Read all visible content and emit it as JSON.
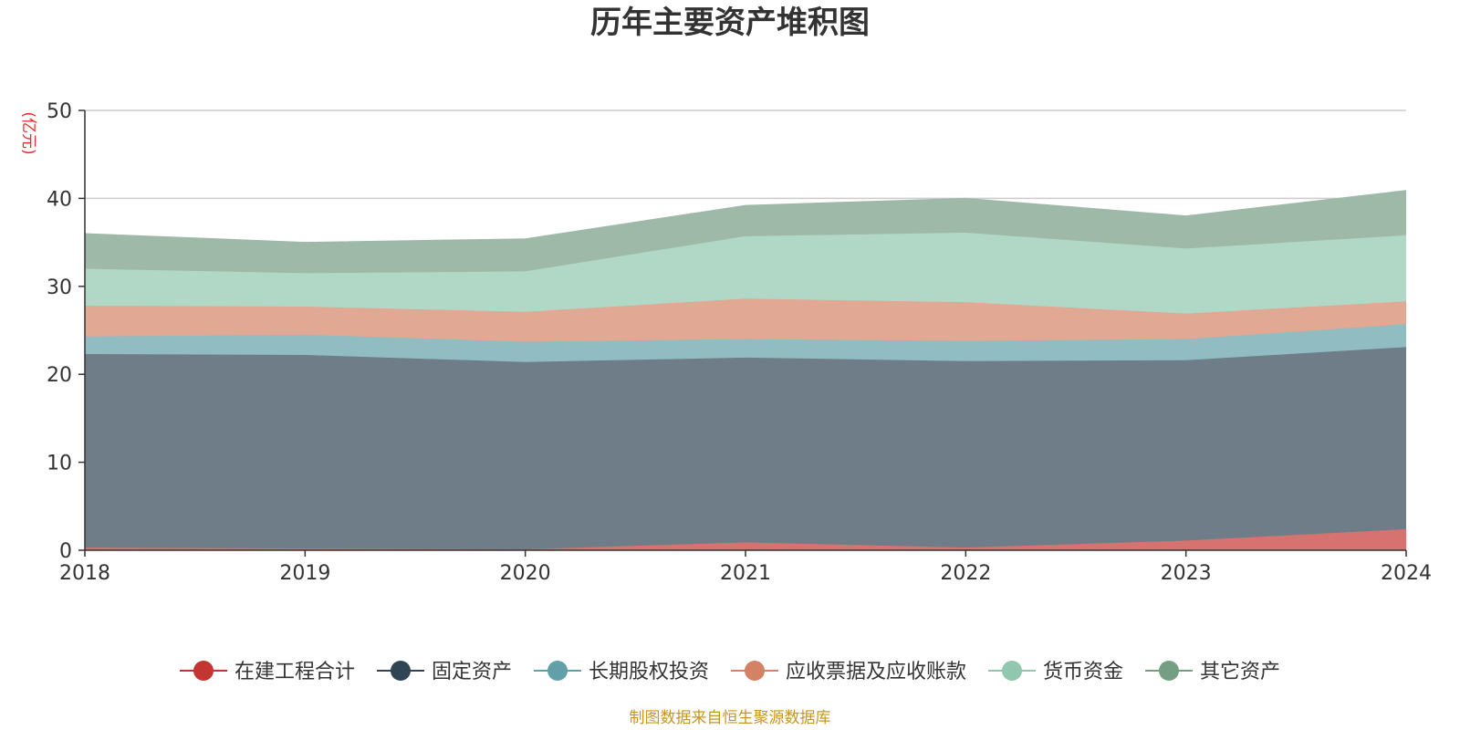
{
  "chart_data": {
    "type": "area",
    "stacked": true,
    "title": "历年主要资产堆积图",
    "unit_label": "(亿元)",
    "source_note": "制图数据来自恒生聚源数据库",
    "x": [
      "2018",
      "2019",
      "2020",
      "2021",
      "2022",
      "2023",
      "2024"
    ],
    "ylim": [
      0,
      50
    ],
    "yticks": [
      0,
      10,
      20,
      30,
      40,
      50
    ],
    "grid": true,
    "legend_position": "bottom",
    "series": [
      {
        "name": "在建工程合计",
        "color": "#c23531",
        "fill": "#d67270",
        "values": [
          0.3,
          0.2,
          0.1,
          0.9,
          0.3,
          1.1,
          2.4
        ]
      },
      {
        "name": "固定资产",
        "color": "#2f4554",
        "fill": "#6e7d88",
        "values": [
          22.0,
          22.0,
          21.3,
          21.0,
          21.2,
          20.5,
          20.7
        ]
      },
      {
        "name": "长期股权投资",
        "color": "#61a0a8",
        "fill": "#90bcc2",
        "values": [
          2.0,
          2.3,
          2.3,
          2.1,
          2.3,
          2.4,
          2.6
        ]
      },
      {
        "name": "应收票据及应收账款",
        "color": "#d48265",
        "fill": "#e1a893",
        "values": [
          3.5,
          3.2,
          3.4,
          4.6,
          4.4,
          2.9,
          2.6
        ]
      },
      {
        "name": "货币资金",
        "color": "#91c7ae",
        "fill": "#b1d8c6",
        "values": [
          4.2,
          3.8,
          4.6,
          7.1,
          7.9,
          7.4,
          7.5
        ]
      },
      {
        "name": "其它资产",
        "color": "#749f83",
        "fill": "#9eb9a7",
        "values": [
          4.0,
          3.5,
          3.7,
          3.5,
          3.9,
          3.7,
          5.1
        ]
      }
    ]
  }
}
